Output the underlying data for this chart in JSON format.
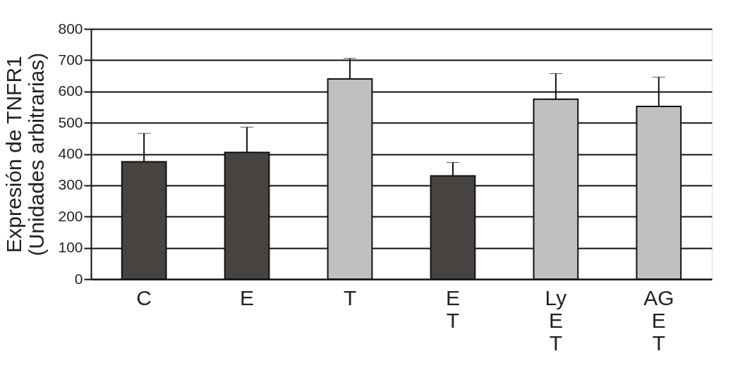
{
  "chart_data": {
    "type": "bar",
    "ylabel": "Expresión de TNFR1\n(Unidades arbitrarias)",
    "categories": [
      "C",
      "E",
      "T",
      "E\nT",
      "Ly\nE\nT",
      "AG\nE\nT"
    ],
    "values": [
      375,
      405,
      640,
      330,
      575,
      552
    ],
    "colors": [
      "#474340",
      "#474340",
      "#c0c0c0",
      "#474340",
      "#c0c0c0",
      "#c0c0c0"
    ],
    "errors": [
      [
        375,
        466
      ],
      [
        405,
        486
      ],
      [
        640,
        706
      ],
      [
        330,
        373
      ],
      [
        575,
        657
      ],
      [
        552,
        646
      ]
    ],
    "ylim": [
      0,
      800
    ],
    "yticks": [
      0,
      100,
      200,
      300,
      400,
      500,
      600,
      700,
      800
    ],
    "grid": "y"
  }
}
